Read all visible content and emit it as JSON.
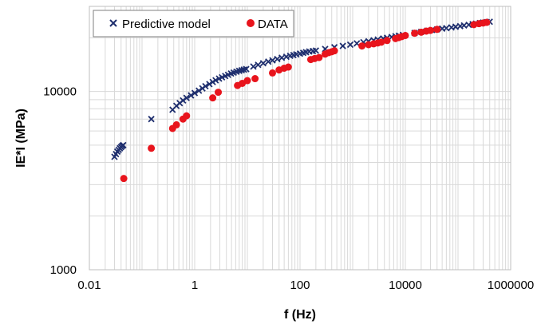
{
  "chart_data": {
    "type": "scatter",
    "xlabel": "f (Hz)",
    "ylabel": "IE*I (MPa)",
    "x_scale": "log",
    "y_scale": "log",
    "xlim": [
      0.01,
      1000000
    ],
    "ylim": [
      1000,
      30000
    ],
    "x_tick_labels": [
      "0.01",
      "1",
      "100",
      "10000",
      "1000000"
    ],
    "y_tick_labels": [
      "1000",
      "10000"
    ],
    "grid": true,
    "legend_position": "top-left",
    "series": [
      {
        "name": "Predictive model",
        "marker": "x",
        "color": "#1f2f6e",
        "points": [
          [
            0.03,
            4300
          ],
          [
            0.032,
            4450
          ],
          [
            0.034,
            4600
          ],
          [
            0.036,
            4700
          ],
          [
            0.038,
            4800
          ],
          [
            0.04,
            4880
          ],
          [
            0.042,
            4950
          ],
          [
            0.044,
            5000
          ],
          [
            0.15,
            7000
          ],
          [
            0.38,
            7900
          ],
          [
            0.45,
            8300
          ],
          [
            0.52,
            8600
          ],
          [
            0.6,
            8900
          ],
          [
            0.7,
            9200
          ],
          [
            0.85,
            9500
          ],
          [
            1.0,
            9800
          ],
          [
            1.2,
            10100
          ],
          [
            1.4,
            10400
          ],
          [
            1.6,
            10700
          ],
          [
            1.9,
            11000
          ],
          [
            2.2,
            11300
          ],
          [
            2.5,
            11550
          ],
          [
            2.9,
            11800
          ],
          [
            3.3,
            12000
          ],
          [
            3.8,
            12200
          ],
          [
            4.3,
            12400
          ],
          [
            4.9,
            12600
          ],
          [
            5.5,
            12750
          ],
          [
            6.2,
            12900
          ],
          [
            7.0,
            13050
          ],
          [
            7.8,
            13150
          ],
          [
            8.6,
            13250
          ],
          [
            9.5,
            13350
          ],
          [
            13,
            13800
          ],
          [
            16,
            14100
          ],
          [
            20,
            14400
          ],
          [
            25,
            14700
          ],
          [
            30,
            14950
          ],
          [
            37,
            15200
          ],
          [
            45,
            15450
          ],
          [
            55,
            15650
          ],
          [
            65,
            15850
          ],
          [
            75,
            16000
          ],
          [
            85,
            16150
          ],
          [
            100,
            16300
          ],
          [
            115,
            16450
          ],
          [
            130,
            16600
          ],
          [
            150,
            16750
          ],
          [
            175,
            16850
          ],
          [
            200,
            16950
          ],
          [
            300,
            17300
          ],
          [
            450,
            17700
          ],
          [
            650,
            18000
          ],
          [
            900,
            18300
          ],
          [
            1200,
            18600
          ],
          [
            1600,
            18900
          ],
          [
            2000,
            19100
          ],
          [
            2500,
            19350
          ],
          [
            3000,
            19550
          ],
          [
            3800,
            19800
          ],
          [
            4500,
            20000
          ],
          [
            5500,
            20200
          ],
          [
            6500,
            20400
          ],
          [
            7500,
            20550
          ],
          [
            9000,
            20750
          ],
          [
            15000,
            21300
          ],
          [
            20000,
            21600
          ],
          [
            26000,
            21900
          ],
          [
            32000,
            22100
          ],
          [
            40000,
            22300
          ],
          [
            50000,
            22500
          ],
          [
            60000,
            22650
          ],
          [
            75000,
            22850
          ],
          [
            90000,
            23050
          ],
          [
            110000,
            23250
          ],
          [
            130000,
            23450
          ],
          [
            160000,
            23650
          ],
          [
            190000,
            23850
          ],
          [
            220000,
            24000
          ],
          [
            260000,
            24200
          ],
          [
            300000,
            24350
          ],
          [
            350000,
            24500
          ],
          [
            400000,
            24600
          ]
        ]
      },
      {
        "name": "DATA",
        "marker": "circle",
        "color": "#e8141c",
        "points": [
          [
            0.045,
            3250
          ],
          [
            0.15,
            4800
          ],
          [
            0.38,
            6200
          ],
          [
            0.45,
            6500
          ],
          [
            0.6,
            7000
          ],
          [
            0.7,
            7300
          ],
          [
            2.2,
            9200
          ],
          [
            2.8,
            9900
          ],
          [
            6.5,
            10800
          ],
          [
            8,
            11100
          ],
          [
            10,
            11500
          ],
          [
            14,
            11800
          ],
          [
            30,
            12700
          ],
          [
            40,
            13200
          ],
          [
            50,
            13500
          ],
          [
            60,
            13700
          ],
          [
            160,
            15100
          ],
          [
            190,
            15300
          ],
          [
            230,
            15500
          ],
          [
            300,
            16200
          ],
          [
            350,
            16500
          ],
          [
            400,
            16700
          ],
          [
            450,
            16900
          ],
          [
            1500,
            18000
          ],
          [
            2000,
            18300
          ],
          [
            2500,
            18500
          ],
          [
            3000,
            18700
          ],
          [
            3500,
            18900
          ],
          [
            4500,
            19300
          ],
          [
            6500,
            19800
          ],
          [
            7500,
            20050
          ],
          [
            8500,
            20300
          ],
          [
            10000,
            20600
          ],
          [
            15000,
            21200
          ],
          [
            20000,
            21500
          ],
          [
            25000,
            21800
          ],
          [
            30000,
            22000
          ],
          [
            40000,
            22300
          ],
          [
            200000,
            23700
          ],
          [
            250000,
            24000
          ],
          [
            300000,
            24200
          ],
          [
            350000,
            24400
          ]
        ]
      }
    ]
  }
}
